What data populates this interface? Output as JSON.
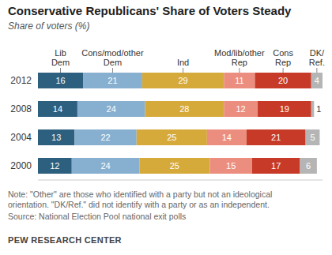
{
  "chart_data": {
    "type": "bar",
    "orientation": "horizontal",
    "stacked": true,
    "data_labels": true,
    "tick_labels": "y",
    "grid": false,
    "title": "Conservative Republicans' Share of Voters Steady",
    "subtitle": "Share of voters (%)",
    "categories": [
      "2012",
      "2008",
      "2004",
      "2000"
    ],
    "xlim": [
      0,
      101
    ],
    "series": [
      {
        "name": "Lib Dem",
        "color": "#2d5f7f",
        "values": [
          16,
          14,
          13,
          12
        ]
      },
      {
        "name": "Cons/mod/other Dem",
        "color": "#86afd0",
        "values": [
          21,
          24,
          22,
          24
        ]
      },
      {
        "name": "Ind",
        "color": "#d6a93b",
        "values": [
          29,
          28,
          25,
          25
        ]
      },
      {
        "name": "Mod/lib/other Rep",
        "color": "#ec8e7f",
        "values": [
          11,
          12,
          14,
          15
        ]
      },
      {
        "name": "Cons Rep",
        "color": "#c73a28",
        "values": [
          20,
          19,
          21,
          17
        ]
      },
      {
        "name": "DK/Ref.",
        "color": "#b5b5b5",
        "values": [
          4,
          1,
          5,
          6
        ]
      }
    ],
    "note": "Note: \"Other\" are those who identified with a party but not an ideological orientation. \"DK/Ref.\" did not identify with a party or as an independent.",
    "source": "Source: National Election Pool national exit polls",
    "credit": "PEW RESEARCH CENTER"
  }
}
